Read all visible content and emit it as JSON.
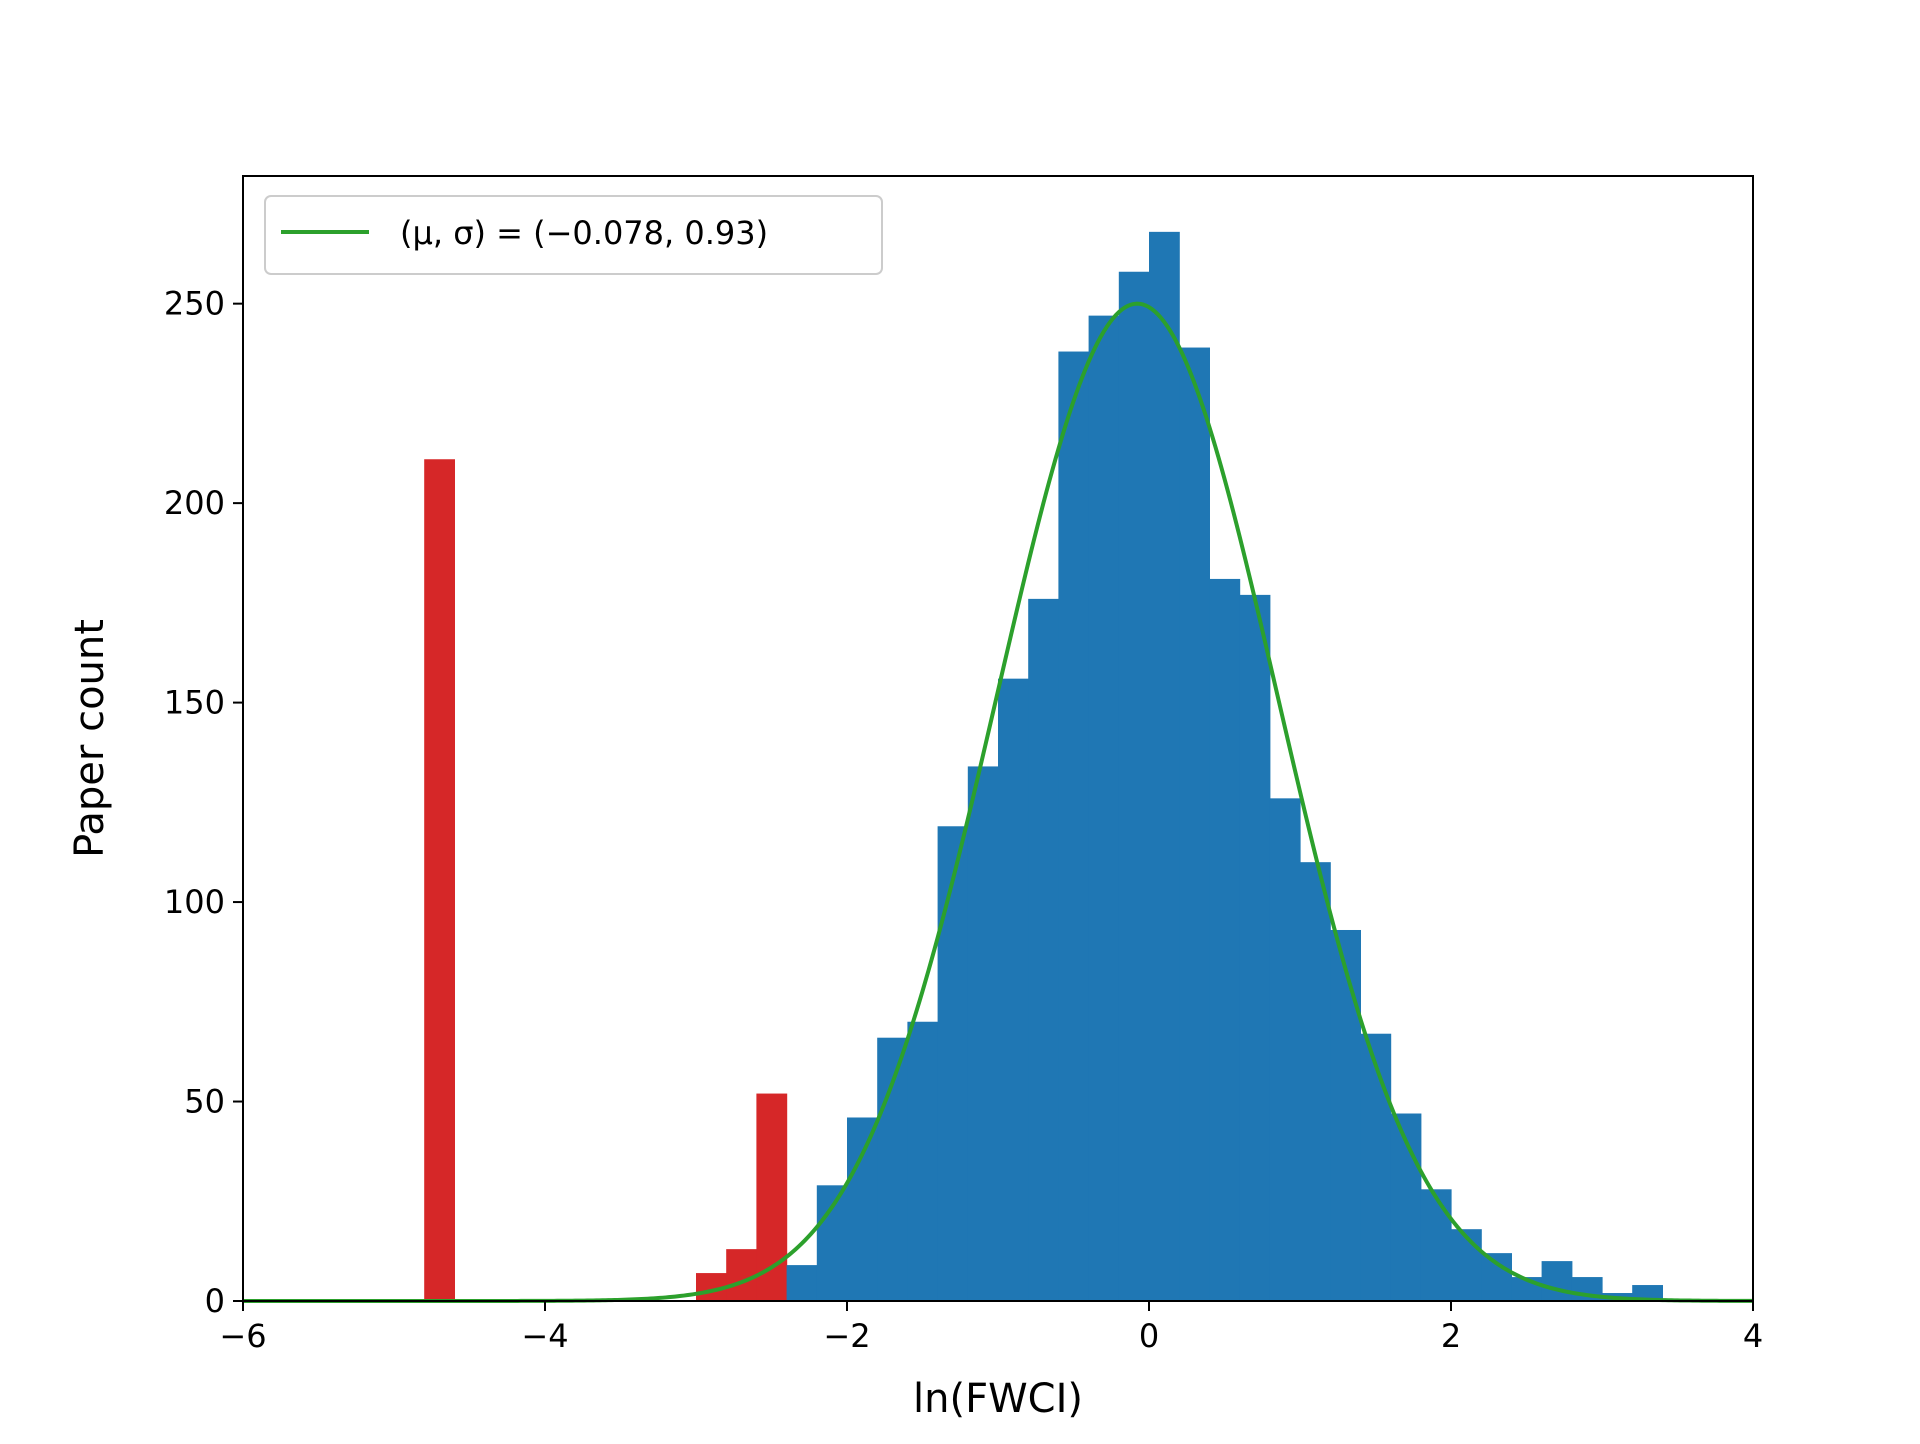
{
  "chart_data": {
    "type": "bar",
    "xlabel": "ln(FWCI)",
    "ylabel": "Paper count",
    "xlim": [
      -6,
      4
    ],
    "ylim": [
      0,
      282
    ],
    "xticks": [
      -6,
      -4,
      -2,
      0,
      2,
      4
    ],
    "xtick_labels": [
      "−6",
      "−4",
      "−2",
      "0",
      "2",
      "4"
    ],
    "yticks": [
      0,
      50,
      100,
      150,
      200,
      250
    ],
    "ytick_labels": [
      "0",
      "50",
      "100",
      "150",
      "200",
      "250"
    ],
    "grid": false,
    "legend": {
      "placement": "top-left",
      "entries": [
        {
          "label": "(μ, σ) = (−0.078, 0.93)",
          "color": "#2ca02c"
        }
      ]
    },
    "bin_width": 0.2,
    "series": [
      {
        "color": "#d62728",
        "bins": [
          {
            "x0": -4.8,
            "count": 211
          },
          {
            "x0": -3.0,
            "count": 7
          },
          {
            "x0": -2.8,
            "count": 13
          },
          {
            "x0": -2.6,
            "count": 52
          }
        ]
      },
      {
        "color": "#1f77b4",
        "bins": [
          {
            "x0": -2.4,
            "count": 9
          },
          {
            "x0": -2.2,
            "count": 29
          },
          {
            "x0": -2.0,
            "count": 46
          },
          {
            "x0": -1.8,
            "count": 66
          },
          {
            "x0": -1.6,
            "count": 70
          },
          {
            "x0": -1.4,
            "count": 119
          },
          {
            "x0": -1.2,
            "count": 134
          },
          {
            "x0": -1.0,
            "count": 156
          },
          {
            "x0": -0.8,
            "count": 176
          },
          {
            "x0": -0.6,
            "count": 238
          },
          {
            "x0": -0.4,
            "count": 247
          },
          {
            "x0": -0.2,
            "count": 258
          },
          {
            "x0": 0.0,
            "count": 268
          },
          {
            "x0": 0.2,
            "count": 239
          },
          {
            "x0": 0.4,
            "count": 181
          },
          {
            "x0": 0.6,
            "count": 177
          },
          {
            "x0": 0.8,
            "count": 126
          },
          {
            "x0": 1.0,
            "count": 110
          },
          {
            "x0": 1.2,
            "count": 93
          },
          {
            "x0": 1.4,
            "count": 67
          },
          {
            "x0": 1.6,
            "count": 47
          },
          {
            "x0": 1.8,
            "count": 28
          },
          {
            "x0": 2.0,
            "count": 18
          },
          {
            "x0": 2.2,
            "count": 12
          },
          {
            "x0": 2.4,
            "count": 6
          },
          {
            "x0": 2.6,
            "count": 10
          },
          {
            "x0": 2.8,
            "count": 6
          },
          {
            "x0": 3.0,
            "count": 2
          },
          {
            "x0": 3.2,
            "count": 4
          }
        ]
      }
    ],
    "fit": {
      "type": "normal",
      "mu": -0.078,
      "sigma": 0.93,
      "peak": 250,
      "color": "#2ca02c"
    }
  }
}
